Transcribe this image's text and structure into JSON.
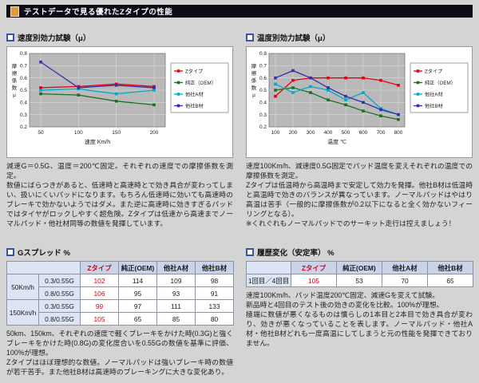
{
  "header": {
    "title": "テストデータで見る優れたZタイプの性能"
  },
  "icons": {
    "title_icon": "document-icon",
    "section_bullet": "square-bullet-icon"
  },
  "colors": {
    "z_type": "#e60012",
    "oem": "#1f6e1f",
    "company_a": "#00aacc",
    "company_b": "#3030a8",
    "title_bar_bg": "#0c0c16",
    "table_header_bg": "#c9d3e9",
    "plot_bg": "#b9b9b9"
  },
  "chart_data": [
    {
      "type": "line",
      "title": "速度別効力試験（μ）",
      "x": [
        50,
        100,
        150,
        200
      ],
      "xlabel": "速度 Km/h",
      "ylabel": "摩擦係数μ",
      "ylim": [
        0.2,
        0.8
      ],
      "yticks": [
        0.2,
        0.3,
        0.4,
        0.5,
        0.6,
        0.7,
        0.8
      ],
      "grid": true,
      "legend_position": "right",
      "series": [
        {
          "name": "Zタイプ",
          "color": "#e60012",
          "values": [
            0.52,
            0.53,
            0.55,
            0.53
          ]
        },
        {
          "name": "純正（OEM）",
          "color": "#1f6e1f",
          "values": [
            0.47,
            0.46,
            0.41,
            0.38
          ]
        },
        {
          "name": "他社A材",
          "color": "#00aacc",
          "values": [
            0.5,
            0.51,
            0.47,
            0.5
          ]
        },
        {
          "name": "他社B材",
          "color": "#3030a8",
          "values": [
            0.73,
            0.52,
            0.54,
            0.52
          ]
        }
      ]
    },
    {
      "type": "line",
      "title": "温度別効力試験（μ）",
      "x": [
        100,
        200,
        300,
        400,
        500,
        600,
        700,
        800
      ],
      "xlabel": "温度 ℃",
      "ylabel": "摩擦係数μ",
      "ylim": [
        0.2,
        0.8
      ],
      "yticks": [
        0.2,
        0.3,
        0.4,
        0.5,
        0.6,
        0.7,
        0.8
      ],
      "grid": true,
      "legend_position": "right",
      "series": [
        {
          "name": "Zタイプ",
          "color": "#e60012",
          "values": [
            0.45,
            0.58,
            0.6,
            0.6,
            0.6,
            0.6,
            0.58,
            0.54
          ]
        },
        {
          "name": "純正（OEM）",
          "color": "#1f6e1f",
          "values": [
            0.5,
            0.52,
            0.48,
            0.42,
            0.38,
            0.33,
            0.29,
            0.26
          ]
        },
        {
          "name": "他社A材",
          "color": "#00aacc",
          "values": [
            0.55,
            0.48,
            0.53,
            0.5,
            0.42,
            0.48,
            0.35,
            0.3
          ]
        },
        {
          "name": "他社B材",
          "color": "#3030a8",
          "values": [
            0.6,
            0.66,
            0.6,
            0.52,
            0.45,
            0.4,
            0.34,
            0.3
          ]
        }
      ]
    }
  ],
  "left": {
    "section_title": "速度別効力試験（μ）",
    "chart_desc": "減速G＝0.5G、温度＝200℃固定。それぞれの速度での摩擦係数を測定。\n数値にばらつきがあると、低速時と高速時とで効き具合が変わってしまい、扱いにくいパッドになります。もちろん低速時に効いても高速時のブレーキで効かないようではダメ。また逆に高速時に効きすぎるパッドではタイヤがロックしやすく超危険。Zタイプは低速から高速までノーマルパッド・他社材同等の数値を発揮しています。",
    "table_title": "Gスプレッド %",
    "table": {
      "columns": [
        "Zタイプ",
        "純正(OEM)",
        "他社A材",
        "他社B材"
      ],
      "row_groups": [
        {
          "group": "50Km/h",
          "rows": [
            {
              "label": "0.3/0.55G",
              "values": [
                102,
                114,
                109,
                98
              ]
            },
            {
              "label": "0.8/0.55G",
              "values": [
                106,
                95,
                93,
                91
              ]
            }
          ]
        },
        {
          "group": "150Km/h",
          "rows": [
            {
              "label": "0.3/0.55G",
              "values": [
                99,
                97,
                111,
                133
              ]
            },
            {
              "label": "0.8/0.55G",
              "values": [
                105,
                65,
                85,
                80
              ]
            }
          ]
        }
      ]
    },
    "table_desc": "50km、150km、それぞれの速度で軽くブレーキをかけた時(0.3G)と強くブレーキをかけた時(0.8G)の変化度合いを0.55Gの数値を基準に評価、100%が理想。\nZタイプはほぼ理想的な数値。ノーマルパッドは強いブレーキ時の数値が若干苦手。また他社B材は高速時のブレーキングに大きな変化あり。"
  },
  "right": {
    "section_title": "温度別効力試験（μ）",
    "chart_desc": "速度100Km/h、減速度0.5G固定でパッド温度を変えそれぞれの温度での摩擦係数を測定。\nZタイプは低温時から高温時まで安定して効力を発揮。他社B材は低温時と高温時で効きのバランスが異なっています。ノーマルパッドはやはり高温は苦手（一般的に摩擦係数が0.2以下になると全く効かないフィーリングとなる）。\n※くれぐれもノーマルパッドでのサーキット走行は控えましょう！",
    "table_title": "履歴変化（安定率） %",
    "table": {
      "columns": [
        "Zタイプ",
        "純正(OEM)",
        "他社A材",
        "他社B材"
      ],
      "rows": [
        {
          "label": "1回目／4回目",
          "values": [
            105,
            53,
            70,
            65
          ]
        }
      ]
    },
    "table_desc": "速度100Km/h、パッド温度200℃固定、減速Gを変えて試験。\n新品時と4回目のテスト後の効きの変化を比較。100%が理想。\n極端に数値が悪くなるものは慣らしの1本目と2本目で効き具合が変わり、効きが悪くなっていることを表します。ノーマルパッド・他社A材・他社B材どれも一度高温にしてしまうと元の性能を発揮できておりません。"
  }
}
